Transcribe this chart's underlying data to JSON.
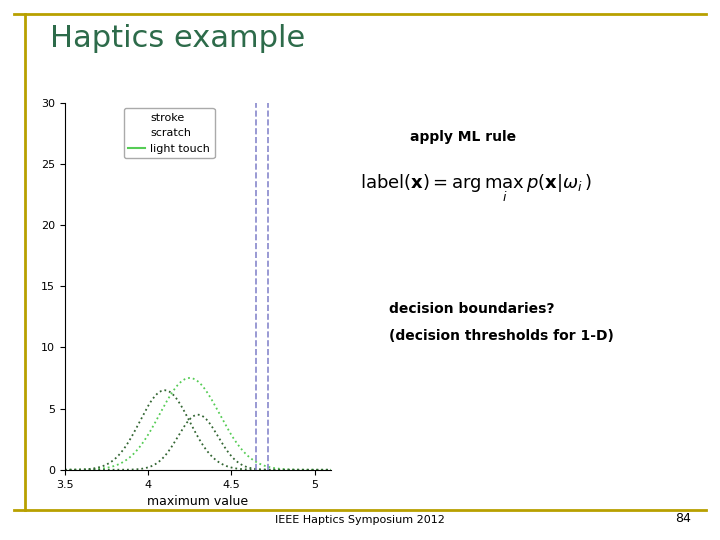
{
  "title": "Haptics example",
  "title_color": "#2d6b4a",
  "slide_number": "84",
  "footer_text": "IEEE Haptics Symposium 2012",
  "bg_color": "#ffffff",
  "border_color": "#b8a000",
  "xlabel": "maximum value",
  "xlim": [
    3.5,
    5.1
  ],
  "ylim": [
    0,
    30
  ],
  "xticks": [
    3.5,
    4,
    4.5,
    5
  ],
  "yticks": [
    0,
    5,
    10,
    15,
    20,
    25,
    30
  ],
  "legend_labels": [
    "stroke",
    "scratch",
    "light touch"
  ],
  "apply_ml_text": "apply ML rule",
  "decision_text_line1": "decision boundaries?",
  "decision_text_line2": "(decision thresholds for 1-D)",
  "light_touch_color": "#55cc55",
  "scratch_color": "#336633",
  "stroke_color": "#000000",
  "vline_color": "#8888cc",
  "vline1_x": 4.65,
  "vline2_x": 4.72,
  "gaussian1_mu": 4.1,
  "gaussian1_sigma": 0.15,
  "gaussian1_amp": 6.5,
  "gaussian2_mu": 4.3,
  "gaussian2_sigma": 0.12,
  "gaussian2_amp": 4.5,
  "gaussian3_mu": 4.25,
  "gaussian3_sigma": 0.18,
  "gaussian3_amp": 7.5
}
